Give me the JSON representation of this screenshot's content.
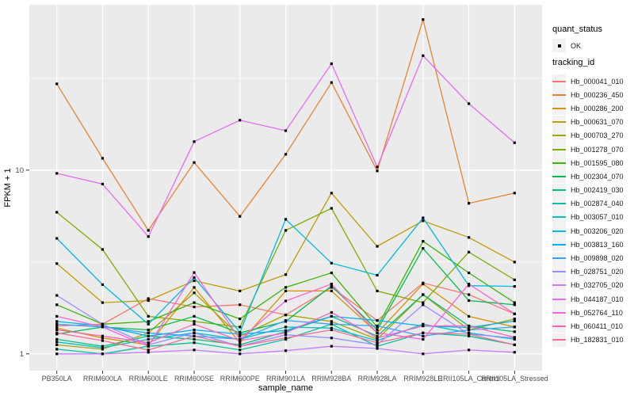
{
  "chart_data": {
    "type": "line",
    "title": "",
    "xlabel": "sample_name",
    "ylabel": "FPKM + 1",
    "y_scale": "log10",
    "ylim": [
      0.81,
      79.5
    ],
    "y_ticks": [
      1,
      10
    ],
    "y_tick_labels": [
      "1",
      "10"
    ],
    "y_minor_gridlines": [
      3.1623,
      31.6228
    ],
    "grid": "on",
    "legend_position": "right",
    "point_marker": {
      "shape": "small-black-square",
      "status_label": "OK"
    },
    "categories": [
      "PB350LA",
      "RRIM600LA",
      "RRIM600LE",
      "RRIM600SE",
      "RRIM600PE",
      "RRIM901LA",
      "RRIM928BA",
      "RRIM928LA",
      "RRIM928LE",
      "RRII105LA_Control",
      "RRII105LA_Stressed"
    ],
    "series": [
      {
        "name": "Hb_000041_010",
        "color": "#F8766D",
        "values": [
          1.42,
          1.45,
          2.0,
          1.8,
          1.85,
          1.63,
          2.3,
          1.52,
          2.43,
          2.1,
          1.65
        ]
      },
      {
        "name": "Hb_000236_450",
        "color": "#EA8331",
        "values": [
          29.5,
          11.6,
          4.7,
          11.0,
          5.6,
          12.2,
          30.0,
          9.9,
          66.0,
          6.6,
          7.5
        ]
      },
      {
        "name": "Hb_000286_200",
        "color": "#D89000",
        "values": [
          1.38,
          1.22,
          1.12,
          2.3,
          1.15,
          2.2,
          2.2,
          1.3,
          2.4,
          1.6,
          1.4
        ]
      },
      {
        "name": "Hb_000631_070",
        "color": "#C09B00",
        "values": [
          3.1,
          1.9,
          1.95,
          2.5,
          2.2,
          2.7,
          7.5,
          3.85,
          5.3,
          4.3,
          3.16
        ]
      },
      {
        "name": "Hb_000703_270",
        "color": "#A3A500",
        "values": [
          1.12,
          1.06,
          1.3,
          2.15,
          1.25,
          1.63,
          1.5,
          1.2,
          2.1,
          1.35,
          1.55
        ]
      },
      {
        "name": "Hb_001278_070",
        "color": "#7CAE00",
        "values": [
          5.9,
          3.7,
          1.6,
          1.5,
          1.4,
          4.7,
          6.2,
          2.2,
          1.9,
          3.58,
          2.53
        ]
      },
      {
        "name": "Hb_001595_080",
        "color": "#39B600",
        "values": [
          1.85,
          1.45,
          1.5,
          1.9,
          1.55,
          2.3,
          2.76,
          1.4,
          4.1,
          2.76,
          1.9
        ]
      },
      {
        "name": "Hb_002304_070",
        "color": "#00BB4E",
        "values": [
          1.28,
          1.4,
          1.35,
          1.6,
          1.3,
          1.5,
          2.34,
          1.35,
          3.75,
          1.95,
          1.85
        ]
      },
      {
        "name": "Hb_002419_030",
        "color": "#00BF7D",
        "values": [
          1.2,
          1.1,
          1.25,
          1.2,
          1.12,
          1.32,
          1.6,
          1.25,
          2.1,
          1.42,
          1.32
        ]
      },
      {
        "name": "Hb_002874_040",
        "color": "#00C1A3",
        "values": [
          1.06,
          1.0,
          1.1,
          1.15,
          1.05,
          1.2,
          1.45,
          1.1,
          1.3,
          1.25,
          1.12
        ]
      },
      {
        "name": "Hb_003057_010",
        "color": "#00BFC4",
        "values": [
          1.16,
          1.08,
          1.2,
          1.3,
          1.2,
          1.4,
          1.38,
          1.18,
          1.45,
          1.3,
          1.2
        ]
      },
      {
        "name": "Hb_003206_020",
        "color": "#00BAE0",
        "values": [
          4.25,
          2.38,
          1.45,
          2.6,
          1.31,
          5.4,
          3.12,
          2.68,
          5.5,
          2.35,
          2.33
        ]
      },
      {
        "name": "Hb_003813_160",
        "color": "#00B0F6",
        "values": [
          1.5,
          1.42,
          1.25,
          1.35,
          1.28,
          1.34,
          1.6,
          1.52,
          1.42,
          1.39,
          1.51
        ]
      },
      {
        "name": "Hb_009898_020",
        "color": "#35A2FF",
        "values": [
          1.45,
          1.4,
          1.3,
          1.25,
          1.2,
          1.52,
          1.45,
          1.42,
          1.25,
          1.35,
          1.4
        ]
      },
      {
        "name": "Hb_028751_020",
        "color": "#9590FF",
        "values": [
          2.08,
          1.45,
          1.12,
          1.3,
          1.1,
          1.27,
          1.22,
          1.12,
          1.85,
          1.28,
          1.22
        ]
      },
      {
        "name": "Hb_032705_020",
        "color": "#C77CFF",
        "values": [
          1.0,
          1.0,
          1.02,
          1.05,
          1.0,
          1.04,
          1.1,
          1.07,
          1.0,
          1.05,
          1.02
        ]
      },
      {
        "name": "Hb_044187_010",
        "color": "#E76BF3",
        "values": [
          9.6,
          8.4,
          4.35,
          14.3,
          18.7,
          16.4,
          38.0,
          10.4,
          42.0,
          23.0,
          14.1
        ]
      },
      {
        "name": "Hb_052764_110",
        "color": "#FA62DB",
        "values": [
          1.6,
          1.4,
          1.1,
          2.77,
          1.2,
          1.94,
          2.4,
          1.3,
          1.2,
          2.4,
          1.65
        ]
      },
      {
        "name": "Hb_060411_010",
        "color": "#FF62BC",
        "values": [
          1.35,
          1.25,
          1.15,
          1.45,
          1.18,
          1.3,
          1.68,
          1.22,
          1.42,
          1.42,
          1.23
        ]
      },
      {
        "name": "Hb_182831_010",
        "color": "#FF6A98",
        "values": [
          1.3,
          1.18,
          1.05,
          1.25,
          1.1,
          1.22,
          1.35,
          1.15,
          1.3,
          1.28,
          1.12
        ]
      }
    ]
  },
  "legend": {
    "quant_status_title": "quant_status",
    "quant_status_items": [
      {
        "label": "OK"
      }
    ],
    "tracking_id_title": "tracking_id"
  },
  "colors": {
    "panel_bg": "#EBEBEB",
    "grid": "#FFFFFF",
    "axis_text": "#4D4D4D",
    "axis_title": "#000000",
    "tick_mark": "#333333",
    "legend_key_bg": "#F2F2F2",
    "marker": "#000000",
    "page_bg": "#FFFFFF"
  }
}
